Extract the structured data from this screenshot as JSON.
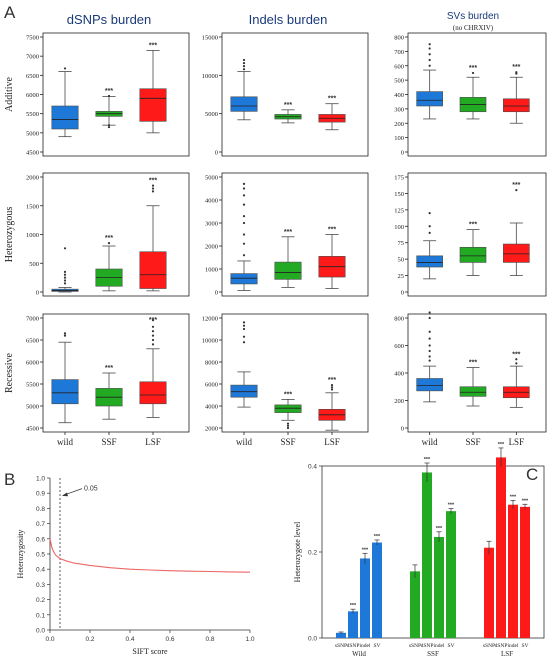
{
  "panel_labels": {
    "A": "A",
    "B": "B",
    "C": "C"
  },
  "colors": {
    "wild": "#1e78d8",
    "SSF": "#22aa22",
    "LSF": "#ff1a1a",
    "outline": "#4a4a4a",
    "curve": "#ee6666"
  },
  "chart_data": [
    {
      "type": "box",
      "panel": "A",
      "name": "dSNP-additive",
      "title": "dSNPs burden",
      "ylabel": "Additive",
      "categories": [
        "wild",
        "SSF",
        "LSF"
      ],
      "ylim": [
        4500,
        7500
      ],
      "yticks": [
        4500,
        5000,
        5500,
        6000,
        6500,
        7000,
        7500
      ],
      "boxes": [
        {
          "q1": 5100,
          "median": 5350,
          "q3": 5700,
          "lo": 4900,
          "hi": 6600,
          "outliers": [
            6680
          ],
          "sig": ""
        },
        {
          "q1": 5430,
          "median": 5500,
          "q3": 5560,
          "lo": 5200,
          "hi": 5950,
          "outliers": [
            5960,
            5150,
            5200
          ],
          "sig": "***"
        },
        {
          "q1": 5300,
          "median": 5900,
          "q3": 6150,
          "lo": 5000,
          "hi": 7150,
          "outliers": [],
          "sig": "***"
        }
      ]
    },
    {
      "type": "box",
      "panel": "A",
      "name": "indel-additive",
      "title": "Indels burden",
      "ylabel": "",
      "categories": [
        "wild",
        "SSF",
        "LSF"
      ],
      "ylim": [
        0,
        15000
      ],
      "yticks": [
        0,
        5000,
        10000,
        15000
      ],
      "boxes": [
        {
          "q1": 5300,
          "median": 6000,
          "q3": 7200,
          "lo": 4200,
          "hi": 10500,
          "outliers": [
            10800,
            11200,
            11600,
            12000
          ],
          "sig": ""
        },
        {
          "q1": 4300,
          "median": 4600,
          "q3": 4900,
          "lo": 3800,
          "hi": 5500,
          "outliers": [],
          "sig": "***"
        },
        {
          "q1": 3900,
          "median": 4400,
          "q3": 4900,
          "lo": 2900,
          "hi": 6300,
          "outliers": [],
          "sig": "***"
        }
      ]
    },
    {
      "type": "box",
      "panel": "A",
      "name": "sv-additive",
      "title": "SVs burden",
      "subtitle": "(no CHRXIV)",
      "ylabel": "",
      "categories": [
        "wild",
        "SSF",
        "LSF"
      ],
      "ylim": [
        0,
        800
      ],
      "yticks": [
        0,
        100,
        200,
        300,
        400,
        500,
        600,
        700,
        800
      ],
      "boxes": [
        {
          "q1": 320,
          "median": 360,
          "q3": 420,
          "lo": 230,
          "hi": 570,
          "outliers": [
            600,
            640,
            680,
            720,
            750
          ],
          "sig": ""
        },
        {
          "q1": 280,
          "median": 330,
          "q3": 380,
          "lo": 230,
          "hi": 520,
          "outliers": [
            550
          ],
          "sig": "***"
        },
        {
          "q1": 280,
          "median": 320,
          "q3": 370,
          "lo": 200,
          "hi": 520,
          "outliers": [
            545,
            555
          ],
          "sig": "***"
        }
      ]
    },
    {
      "type": "box",
      "panel": "A",
      "name": "dSNP-heterozygous",
      "title": "",
      "ylabel": "Heterozygous",
      "categories": [
        "wild",
        "SSF",
        "LSF"
      ],
      "ylim": [
        0,
        2000
      ],
      "yticks": [
        0,
        500,
        1000,
        1500,
        2000
      ],
      "boxes": [
        {
          "q1": 10,
          "median": 25,
          "q3": 50,
          "lo": 0,
          "hi": 80,
          "outliers": [
            150,
            200,
            250,
            300,
            350,
            760
          ],
          "sig": ""
        },
        {
          "q1": 100,
          "median": 250,
          "q3": 400,
          "lo": 20,
          "hi": 800,
          "outliers": [
            850
          ],
          "sig": "***"
        },
        {
          "q1": 60,
          "median": 300,
          "q3": 700,
          "lo": 20,
          "hi": 1500,
          "outliers": [
            1750,
            1800,
            1850
          ],
          "sig": "***"
        }
      ]
    },
    {
      "type": "box",
      "panel": "A",
      "name": "indel-heterozygous",
      "title": "",
      "ylabel": "",
      "categories": [
        "wild",
        "SSF",
        "LSF"
      ],
      "ylim": [
        0,
        5000
      ],
      "yticks": [
        0,
        1000,
        2000,
        3000,
        4000,
        5000
      ],
      "boxes": [
        {
          "q1": 350,
          "median": 600,
          "q3": 800,
          "lo": 60,
          "hi": 1350,
          "outliers": [
            1600,
            2100,
            2500,
            3000,
            3300,
            3800,
            4200,
            4500,
            4700
          ],
          "sig": ""
        },
        {
          "q1": 550,
          "median": 850,
          "q3": 1300,
          "lo": 200,
          "hi": 2400,
          "outliers": [],
          "sig": "***"
        },
        {
          "q1": 650,
          "median": 1100,
          "q3": 1550,
          "lo": 150,
          "hi": 2500,
          "outliers": [],
          "sig": "***"
        }
      ]
    },
    {
      "type": "box",
      "panel": "A",
      "name": "sv-heterozygous",
      "title": "",
      "ylabel": "",
      "categories": [
        "wild",
        "SSF",
        "LSF"
      ],
      "ylim": [
        0,
        175
      ],
      "yticks": [
        0,
        25,
        50,
        75,
        100,
        125,
        150,
        175
      ],
      "boxes": [
        {
          "q1": 38,
          "median": 45,
          "q3": 55,
          "lo": 20,
          "hi": 78,
          "outliers": [
            90,
            100,
            120
          ],
          "sig": ""
        },
        {
          "q1": 45,
          "median": 55,
          "q3": 68,
          "lo": 25,
          "hi": 95,
          "outliers": [],
          "sig": "***"
        },
        {
          "q1": 45,
          "median": 58,
          "q3": 73,
          "lo": 25,
          "hi": 105,
          "outliers": [
            155
          ],
          "sig": "***"
        }
      ]
    },
    {
      "type": "box",
      "panel": "A",
      "name": "dSNP-recessive",
      "title": "",
      "ylabel": "Recessive",
      "categories": [
        "wild",
        "SSF",
        "LSF"
      ],
      "ylim": [
        4500,
        7000
      ],
      "yticks": [
        4500,
        5000,
        5500,
        6000,
        6500,
        7000
      ],
      "boxes": [
        {
          "q1": 5050,
          "median": 5300,
          "q3": 5600,
          "lo": 4620,
          "hi": 6450,
          "outliers": [
            6600,
            6650
          ],
          "sig": ""
        },
        {
          "q1": 5000,
          "median": 5200,
          "q3": 5400,
          "lo": 4700,
          "hi": 5750,
          "outliers": [],
          "sig": "***"
        },
        {
          "q1": 5050,
          "median": 5250,
          "q3": 5550,
          "lo": 4740,
          "hi": 6300,
          "outliers": [
            6400,
            6500,
            6600,
            6700,
            6800,
            6950
          ],
          "sig": "***"
        }
      ]
    },
    {
      "type": "box",
      "panel": "A",
      "name": "indel-recessive",
      "title": "",
      "ylabel": "",
      "categories": [
        "wild",
        "SSF",
        "LSF"
      ],
      "ylim": [
        2000,
        12000
      ],
      "yticks": [
        2000,
        4000,
        6000,
        8000,
        10000,
        12000
      ],
      "boxes": [
        {
          "q1": 4800,
          "median": 5300,
          "q3": 5900,
          "lo": 3900,
          "hi": 7100,
          "outliers": [
            9800,
            10300,
            11000,
            11300,
            11600
          ],
          "sig": ""
        },
        {
          "q1": 3400,
          "median": 3800,
          "q3": 4100,
          "lo": 2700,
          "hi": 4600,
          "outliers": [
            2400,
            2200,
            2000
          ],
          "sig": "***"
        },
        {
          "q1": 2700,
          "median": 3200,
          "q3": 3700,
          "lo": 1800,
          "hi": 5200,
          "outliers": [
            5500,
            5700,
            5900
          ],
          "sig": "***"
        }
      ]
    },
    {
      "type": "box",
      "panel": "A",
      "name": "sv-recessive",
      "title": "",
      "ylabel": "",
      "categories": [
        "wild",
        "SSF",
        "LSF"
      ],
      "ylim": [
        0,
        800
      ],
      "yticks": [
        0,
        200,
        400,
        600,
        800
      ],
      "boxes": [
        {
          "q1": 270,
          "median": 310,
          "q3": 360,
          "lo": 190,
          "hi": 450,
          "outliers": [
            490,
            520,
            560,
            600,
            650,
            700,
            800,
            840
          ],
          "sig": ""
        },
        {
          "q1": 230,
          "median": 260,
          "q3": 300,
          "lo": 160,
          "hi": 440,
          "outliers": [],
          "sig": "***"
        },
        {
          "q1": 220,
          "median": 260,
          "q3": 300,
          "lo": 150,
          "hi": 450,
          "outliers": [
            470,
            500
          ],
          "sig": "***"
        }
      ]
    },
    {
      "type": "line",
      "panel": "B",
      "name": "sift-heterozygosity",
      "xlabel": "SIFT score",
      "ylabel": "Heterozygosity",
      "xlim": [
        0.0,
        1.0
      ],
      "ylim": [
        0.0,
        1.0
      ],
      "xticks": [
        "0.0",
        "0.2",
        "0.4",
        "0.6",
        "0.8",
        "1.0"
      ],
      "yticks": [
        "0.0",
        "0.1",
        "0.2",
        "0.3",
        "0.4",
        "0.5",
        "0.6",
        "0.7",
        "0.8",
        "0.9",
        "1.0"
      ],
      "x": [
        0.0,
        0.005,
        0.01,
        0.02,
        0.03,
        0.05,
        0.08,
        0.12,
        0.2,
        0.3,
        0.4,
        0.5,
        0.6,
        0.7,
        0.8,
        0.9,
        1.0
      ],
      "y": [
        0.6,
        0.57,
        0.54,
        0.51,
        0.49,
        0.47,
        0.455,
        0.44,
        0.425,
        0.41,
        0.4,
        0.395,
        0.39,
        0.387,
        0.385,
        0.382,
        0.38
      ],
      "vline": 0.05,
      "annotation": "0.05"
    },
    {
      "type": "bar",
      "panel": "C",
      "name": "heterozygote-level",
      "ylabel": "Heterozygote level",
      "ylim": [
        0.0,
        0.4
      ],
      "yticks": [
        "0.0",
        "0.2",
        "0.4"
      ],
      "bar_labels": [
        "sSNP",
        "dSNP",
        "indel",
        "SV"
      ],
      "groups": [
        {
          "name": "Wild",
          "values": [
            0.012,
            0.062,
            0.185,
            0.222
          ],
          "errors": [
            0.002,
            0.005,
            0.012,
            0.006
          ],
          "sig": [
            "",
            "***",
            "***",
            "***"
          ]
        },
        {
          "name": "SSF",
          "values": [
            0.155,
            0.385,
            0.235,
            0.295
          ],
          "errors": [
            0.015,
            0.022,
            0.012,
            0.006
          ],
          "sig": [
            "",
            "***",
            "***",
            "***"
          ]
        },
        {
          "name": "LSF",
          "values": [
            0.21,
            0.42,
            0.31,
            0.305
          ],
          "errors": [
            0.015,
            0.022,
            0.01,
            0.006
          ],
          "sig": [
            "",
            "***",
            "***",
            "***"
          ]
        }
      ]
    }
  ]
}
